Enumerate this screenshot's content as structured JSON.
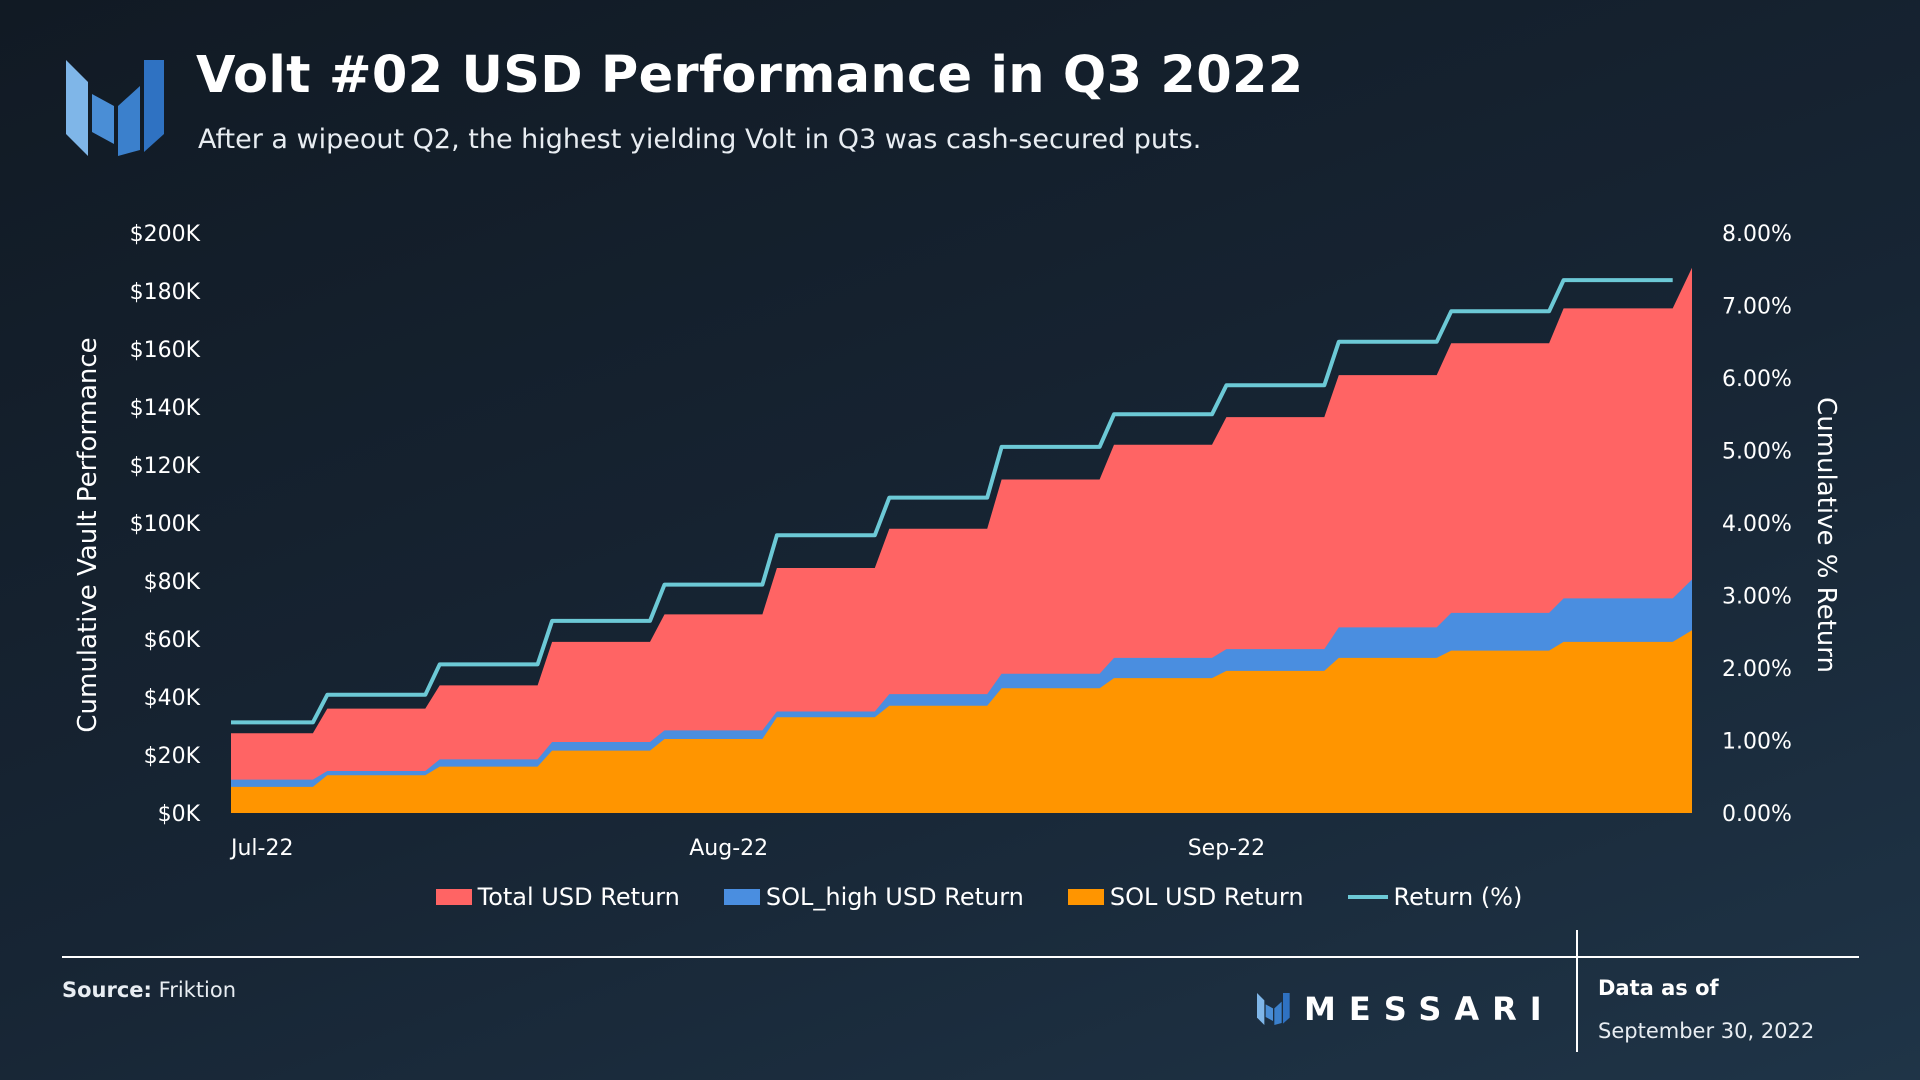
{
  "header": {
    "title": "Volt #02 USD Performance in Q3 2022",
    "subtitle": "After a wipeout Q2, the highest yielding Volt in Q3 was cash-secured puts."
  },
  "colors": {
    "total": "#ff6464",
    "sol_high": "#4a8ee0",
    "sol": "#ff9500",
    "return_line": "#6cc9d6"
  },
  "chart_data": {
    "type": "area",
    "title": "Volt #02 USD Performance in Q3 2022",
    "xlabel": "",
    "ylabel": "Cumulative Vault Performance",
    "y2label": "Cumulative % Return",
    "ylim": [
      0,
      200000
    ],
    "y2lim": [
      0,
      8
    ],
    "y_ticks": [
      "$0K",
      "$20K",
      "$40K",
      "$60K",
      "$80K",
      "$100K",
      "$120K",
      "$140K",
      "$160K",
      "$180K",
      "$200K"
    ],
    "y2_ticks": [
      "0.00%",
      "1.00%",
      "2.00%",
      "3.00%",
      "4.00%",
      "5.00%",
      "6.00%",
      "7.00%",
      "8.00%"
    ],
    "x_ticks": [
      {
        "label": "Jul-22",
        "day": 0
      },
      {
        "label": "Aug-22",
        "day": 31
      },
      {
        "label": "Sep-22",
        "day": 62
      }
    ],
    "x_range": [
      0,
      91
    ],
    "step_days": [
      0,
      6,
      13,
      20,
      27,
      34,
      41,
      48,
      55,
      62,
      69,
      76,
      83,
      91
    ],
    "series": [
      {
        "name": "Total USD Return",
        "kind": "area",
        "values": [
          27500,
          36000,
          44000,
          59000,
          68500,
          84500,
          98000,
          115000,
          127000,
          136500,
          151000,
          162000,
          174000,
          188000
        ]
      },
      {
        "name": "SOL_high USD Return",
        "kind": "area",
        "values": [
          11500,
          14500,
          18500,
          24500,
          28500,
          35000,
          41000,
          48000,
          53500,
          56500,
          64000,
          69000,
          74000,
          80500
        ]
      },
      {
        "name": "SOL USD Return",
        "kind": "area",
        "values": [
          9000,
          13000,
          16000,
          21500,
          25500,
          33000,
          37000,
          43000,
          46500,
          49000,
          53500,
          56000,
          59000,
          63000
        ]
      },
      {
        "name": "Return (%)",
        "kind": "line",
        "axis": "right",
        "values": [
          1.25,
          1.63,
          2.05,
          2.65,
          3.15,
          3.83,
          4.35,
          5.05,
          5.5,
          5.9,
          6.5,
          6.92,
          7.35,
          7.35
        ]
      }
    ],
    "legend": [
      "Total USD Return",
      "SOL_high USD Return",
      "SOL USD Return",
      "Return (%)"
    ]
  },
  "footer": {
    "source_label": "Source:",
    "source_value": "Friktion",
    "brand": "MESSARI",
    "data_as_of_label": "Data as of",
    "data_as_of_date": "September 30, 2022"
  }
}
